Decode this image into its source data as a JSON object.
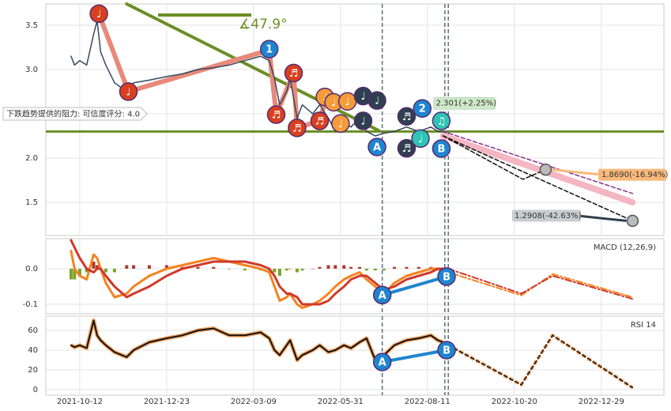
{
  "chart_data": [
    {
      "type": "line",
      "xlim": [
        -19.5,
        336
      ],
      "ylim": [
        1.125,
        3.74
      ],
      "yticks": [
        1.5,
        {
          "value": 2.0,
          "label": "2.0"
        },
        {
          "value": 2.5,
          "label": "2.5"
        },
        {
          "value": 3.0,
          "label": "3.0"
        },
        3.5
      ],
      "grid": true,
      "series": [
        {
          "color": "#6b8e23",
          "width": 4,
          "x": [
            27,
            172
          ],
          "values": [
            3.74,
            2.31
          ]
        },
        {
          "color": "#f4b6c2",
          "width": 8,
          "x": [
            209,
            318
          ],
          "values": [
            2.25,
            1.5
          ]
        },
        {
          "color": "#8b2f8b",
          "width": 1.5,
          "dash": true,
          "x": [
            209,
            318
          ],
          "values": [
            2.3,
            1.6
          ]
        },
        {
          "color": "#111111",
          "width": 1.5,
          "dash": true,
          "x": [
            209,
            255,
            268
          ],
          "values": [
            2.25,
            1.76,
            1.869
          ]
        },
        {
          "color": "#111111",
          "width": 1.5,
          "dash": true,
          "x": [
            209,
            318
          ],
          "values": [
            2.25,
            1.2908
          ]
        },
        {
          "color": "#e8897a",
          "width": 6,
          "x": [
            11,
            28,
            109,
            113,
            123,
            125,
            138,
            142
          ],
          "values": [
            3.63,
            2.75,
            3.22,
            2.49,
            2.96,
            2.34,
            2.42,
            2.7
          ]
        },
        {
          "color": "#34495e",
          "width": 1.5,
          "x": [
            -5,
            -3,
            0,
            4,
            8,
            10,
            12,
            15,
            20,
            27,
            31,
            40,
            50,
            59,
            68,
            77,
            86,
            95,
            104,
            109,
            112,
            115,
            119,
            121,
            125,
            128,
            134,
            138,
            143,
            147,
            152,
            156,
            161,
            165,
            170,
            175,
            181,
            188,
            195,
            202,
            206,
            209
          ],
          "values": [
            3.15,
            3.05,
            3.1,
            3.05,
            3.4,
            3.55,
            3.2,
            3.05,
            2.85,
            2.75,
            2.85,
            2.88,
            2.92,
            2.95,
            3.0,
            3.02,
            3.05,
            3.1,
            3.15,
            3.1,
            2.9,
            2.6,
            2.75,
            2.9,
            2.45,
            2.6,
            2.5,
            2.6,
            2.45,
            2.3,
            2.4,
            2.35,
            2.45,
            2.3,
            2.25,
            2.28,
            2.3,
            2.35,
            2.3,
            2.35,
            2.3,
            2.3
          ]
        }
      ],
      "hlines": [
        {
          "value": 2.3,
          "color": "#6b8e23"
        }
      ],
      "vlines": [
        174,
        210,
        212
      ],
      "signals": [
        {
          "x": 11,
          "y": 3.63,
          "label": "♩",
          "color": "#d8401f"
        },
        {
          "x": 28,
          "y": 2.75,
          "label": "♩",
          "color": "#d8401f"
        },
        {
          "x": 109,
          "y": 3.23,
          "label": "1",
          "color": "#1f85d0"
        },
        {
          "x": 123,
          "y": 2.96,
          "label": "♬",
          "color": "#d8401f"
        },
        {
          "x": 113,
          "y": 2.49,
          "label": "♬",
          "color": "#d8401f"
        },
        {
          "x": 125,
          "y": 2.34,
          "label": "♬",
          "color": "#d8401f"
        },
        {
          "x": 138,
          "y": 2.42,
          "label": "♬",
          "color": "#d8401f"
        },
        {
          "x": 141,
          "y": 2.69,
          "label": "♩",
          "color": "#f59b3a"
        },
        {
          "x": 146,
          "y": 2.63,
          "label": "♩",
          "color": "#f59b3a"
        },
        {
          "x": 150,
          "y": 2.39,
          "label": "♩",
          "color": "#f59b3a"
        },
        {
          "x": 154,
          "y": 2.64,
          "label": "♩",
          "color": "#f59b3a"
        },
        {
          "x": 163,
          "y": 2.7,
          "label": "♩",
          "color": "#2e3f4f"
        },
        {
          "x": 171,
          "y": 2.65,
          "label": "♩",
          "color": "#2e3f4f"
        },
        {
          "x": 163,
          "y": 2.42,
          "label": "♩",
          "color": "#2e3f4f"
        },
        {
          "x": 188,
          "y": 2.11,
          "label": "♬",
          "color": "#2e3f4f"
        },
        {
          "x": 188,
          "y": 2.47,
          "label": "♬",
          "color": "#2e3f4f"
        },
        {
          "x": 196,
          "y": 2.22,
          "label": "♩",
          "color": "#2ec4b6"
        },
        {
          "x": 197,
          "y": 2.56,
          "label": "2",
          "color": "#1f85d0"
        },
        {
          "x": 208,
          "y": 2.42,
          "label": "♫",
          "color": "#2ec4b6"
        },
        {
          "x": 171,
          "y": 2.125,
          "label": "A",
          "color": "#1f85d0"
        },
        {
          "x": 208,
          "y": 2.107,
          "label": "B",
          "color": "#1f85d0"
        }
      ],
      "targets": [
        {
          "x": 209,
          "value": 2.301,
          "value_label": "2.301(+2.25%)",
          "color": "#cfe8c8"
        },
        {
          "x": 268,
          "value": 1.869,
          "value_label": "1.8690(-16.94%)",
          "color": "#f8b97a"
        },
        {
          "x": 318,
          "value": 1.2908,
          "value_label": "1.2908(-42.63%)",
          "color": "#c9cdd1"
        }
      ],
      "angle_label": "∡47.9°",
      "annotation": "下跌趋势提供的阻力: 可信度评分: 4.0"
    },
    {
      "type": "line",
      "title": "MACD (12,26,9)",
      "xlim": [
        -19.5,
        336
      ],
      "ylim": [
        -0.1267,
        0.0844
      ],
      "yticks": [
        {
          "value": -0.1,
          "label": "-0.1"
        },
        {
          "value": 0.0,
          "label": "0.0"
        }
      ],
      "grid": true,
      "bar_colors": {
        "up": "#b03a2e",
        "down": "#7aa32a"
      },
      "bars": {
        "x": [
          -5,
          -3,
          0,
          4,
          8,
          10,
          12,
          15,
          20,
          27,
          31,
          40,
          50,
          59,
          68,
          77,
          86,
          95,
          104,
          109,
          112,
          115,
          119,
          121,
          125,
          128,
          134,
          138,
          143,
          147,
          152,
          156,
          161,
          165,
          170,
          175,
          181,
          188,
          195,
          202,
          206,
          209
        ],
        "values": [
          -0.03,
          -0.03,
          -0.02,
          -0.01,
          0.02,
          0.01,
          0.0,
          -0.01,
          -0.01,
          0.01,
          0.01,
          0.01,
          0.01,
          0.005,
          0.005,
          0.005,
          0.0,
          -0.005,
          -0.005,
          -0.005,
          -0.01,
          -0.02,
          -0.005,
          0.0,
          -0.01,
          -0.005,
          0.0,
          0.005,
          0.01,
          0.01,
          0.01,
          0.005,
          0.005,
          -0.005,
          -0.005,
          -0.005,
          0.005,
          0.005,
          0.005,
          0.005,
          0.0,
          -0.005
        ]
      },
      "series": [
        {
          "color": "#f5821f",
          "width": 3,
          "x": [
            -5,
            -3,
            0,
            4,
            8,
            10,
            12,
            15,
            20,
            27,
            31,
            40,
            50,
            59,
            68,
            77,
            86,
            95,
            104,
            109,
            112,
            115,
            119,
            121,
            125,
            128,
            134,
            138,
            143,
            147,
            152,
            156,
            161,
            165,
            170,
            175,
            181,
            188,
            195,
            202,
            206,
            209
          ],
          "values": [
            0.05,
            0.0,
            -0.02,
            -0.03,
            0.04,
            0.03,
            0.0,
            -0.04,
            -0.08,
            -0.07,
            -0.05,
            -0.02,
            0.0,
            0.01,
            0.02,
            0.03,
            0.02,
            0.01,
            0.0,
            -0.01,
            -0.05,
            -0.09,
            -0.08,
            -0.07,
            -0.1,
            -0.11,
            -0.1,
            -0.09,
            -0.07,
            -0.05,
            -0.03,
            -0.02,
            -0.01,
            -0.03,
            -0.05,
            -0.07,
            -0.04,
            -0.02,
            -0.01,
            0.0,
            0.0,
            -0.01
          ]
        },
        {
          "color": "#d0392b",
          "width": 3,
          "x": [
            -5,
            -3,
            0,
            4,
            8,
            10,
            12,
            15,
            20,
            27,
            31,
            40,
            50,
            59,
            68,
            77,
            86,
            95,
            104,
            109,
            112,
            115,
            119,
            121,
            125,
            128,
            134,
            138,
            143,
            147,
            152,
            156,
            161,
            165,
            170,
            175,
            181,
            188,
            195,
            202,
            206,
            209
          ],
          "values": [
            0.08,
            0.06,
            0.03,
            0.0,
            -0.01,
            0.0,
            0.0,
            -0.02,
            -0.05,
            -0.08,
            -0.07,
            -0.05,
            -0.02,
            0.0,
            0.01,
            0.02,
            0.02,
            0.02,
            0.01,
            0.0,
            -0.02,
            -0.05,
            -0.07,
            -0.07,
            -0.08,
            -0.1,
            -0.1,
            -0.1,
            -0.09,
            -0.07,
            -0.05,
            -0.03,
            -0.02,
            -0.02,
            -0.04,
            -0.06,
            -0.05,
            -0.03,
            -0.02,
            -0.01,
            0.0,
            0.0
          ]
        },
        {
          "color": "#f5821f",
          "width": 2,
          "dash": true,
          "x": [
            212,
            254,
            272,
            318
          ],
          "values": [
            -0.01,
            -0.075,
            -0.015,
            -0.08
          ]
        },
        {
          "color": "#d0392b",
          "width": 2,
          "dash": true,
          "x": [
            212,
            254,
            272,
            318
          ],
          "values": [
            0.0,
            -0.07,
            -0.02,
            -0.085
          ]
        },
        {
          "color": "#1f85d0",
          "width": 4,
          "x": [
            174,
            211
          ],
          "values": [
            -0.074,
            -0.022
          ]
        }
      ],
      "vlines": [
        174,
        210,
        212
      ],
      "signals": [
        {
          "x": 174,
          "y": -0.074,
          "label": "A",
          "color": "#1f85d0"
        },
        {
          "x": 211,
          "y": -0.022,
          "label": "B",
          "color": "#1f85d0"
        }
      ]
    },
    {
      "type": "line",
      "title": "RSI 14",
      "xlim": [
        -19.5,
        336
      ],
      "ylim": [
        -5.6,
        74.4
      ],
      "yticks": [
        0,
        20,
        40,
        60
      ],
      "grid": true,
      "xticks": [
        {
          "value": 0,
          "label": "2021-10-12"
        },
        {
          "value": 50,
          "label": "2021-12-23"
        },
        {
          "value": 100,
          "label": "2022-03-09"
        },
        {
          "value": 150,
          "label": "2022-05-31"
        },
        {
          "value": 200,
          "label": "2022-08-11"
        },
        {
          "value": 250,
          "label": "2022-10-20"
        },
        {
          "value": 300,
          "label": "2022-12-29"
        }
      ],
      "series": [
        {
          "color": "#111111",
          "outline": "#f4a460",
          "width": 2,
          "x": [
            -5,
            -3,
            0,
            4,
            8,
            10,
            12,
            15,
            20,
            27,
            31,
            40,
            50,
            59,
            68,
            77,
            86,
            95,
            104,
            109,
            112,
            115,
            119,
            121,
            125,
            128,
            134,
            138,
            143,
            147,
            152,
            156,
            161,
            165,
            170,
            175,
            181,
            188,
            195,
            202,
            206,
            209
          ],
          "values": [
            45,
            43,
            45,
            42,
            70,
            55,
            50,
            45,
            38,
            33,
            40,
            48,
            52,
            55,
            60,
            62,
            55,
            55,
            58,
            52,
            40,
            35,
            45,
            50,
            30,
            35,
            40,
            45,
            38,
            40,
            45,
            42,
            48,
            52,
            30,
            35,
            45,
            50,
            52,
            55,
            50,
            48
          ]
        },
        {
          "color": "#111111",
          "outline": "#f4a460",
          "width": 1.5,
          "dash": true,
          "x": [
            212,
            254,
            272,
            318
          ],
          "values": [
            45,
            5,
            55,
            2
          ]
        },
        {
          "color": "#1f85d0",
          "width": 4,
          "x": [
            174,
            211
          ],
          "values": [
            28,
            40
          ]
        }
      ],
      "vlines": [
        174,
        210,
        212
      ],
      "signals": [
        {
          "x": 174,
          "y": 28,
          "label": "A",
          "color": "#1f85d0"
        },
        {
          "x": 211,
          "y": 40,
          "label": "B",
          "color": "#1f85d0"
        }
      ]
    }
  ]
}
